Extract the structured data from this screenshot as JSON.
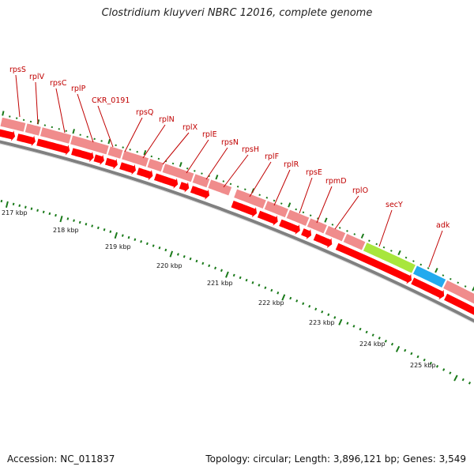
{
  "title": "Clostridium kluyveri NBRC 12016, complete genome",
  "footer": {
    "accession": "Accession: NC_011837",
    "topology": "Topology: circular; Length: 3,896,121 bp; Genes: 3,549"
  },
  "colors": {
    "gene_bar": "#f08c8c",
    "gene_arrow": "#ff0000",
    "label_line": "#c00000",
    "backbone": "#808080",
    "tick": "#1a7a1a",
    "secY": "#a8e63c",
    "adk": "#22aaee"
  },
  "genes": [
    {
      "name": "rpsS",
      "color": "gene"
    },
    {
      "name": "rplV",
      "color": "gene"
    },
    {
      "name": "rpsC",
      "color": "gene"
    },
    {
      "name": "rplP",
      "color": "gene"
    },
    {
      "name": "CKR_0191",
      "color": "gene"
    },
    {
      "name": "rpsQ",
      "color": "gene"
    },
    {
      "name": "rplN",
      "color": "gene"
    },
    {
      "name": "rplX",
      "color": "gene"
    },
    {
      "name": "rplE",
      "color": "gene"
    },
    {
      "name": "rpsN",
      "color": "gene"
    },
    {
      "name": "rpsH",
      "color": "gene"
    },
    {
      "name": "rplF",
      "color": "gene"
    },
    {
      "name": "rplR",
      "color": "gene"
    },
    {
      "name": "rpsE",
      "color": "gene"
    },
    {
      "name": "rpmD",
      "color": "gene"
    },
    {
      "name": "rplO",
      "color": "gene"
    },
    {
      "name": "secY",
      "color": "secY"
    },
    {
      "name": "adk",
      "color": "adk"
    }
  ],
  "scale_labels": [
    "217 kbp",
    "218 kbp",
    "219 kbp",
    "220 kbp",
    "221 kbp",
    "222 kbp",
    "223 kbp",
    "224 kbp",
    "225 kbp"
  ]
}
